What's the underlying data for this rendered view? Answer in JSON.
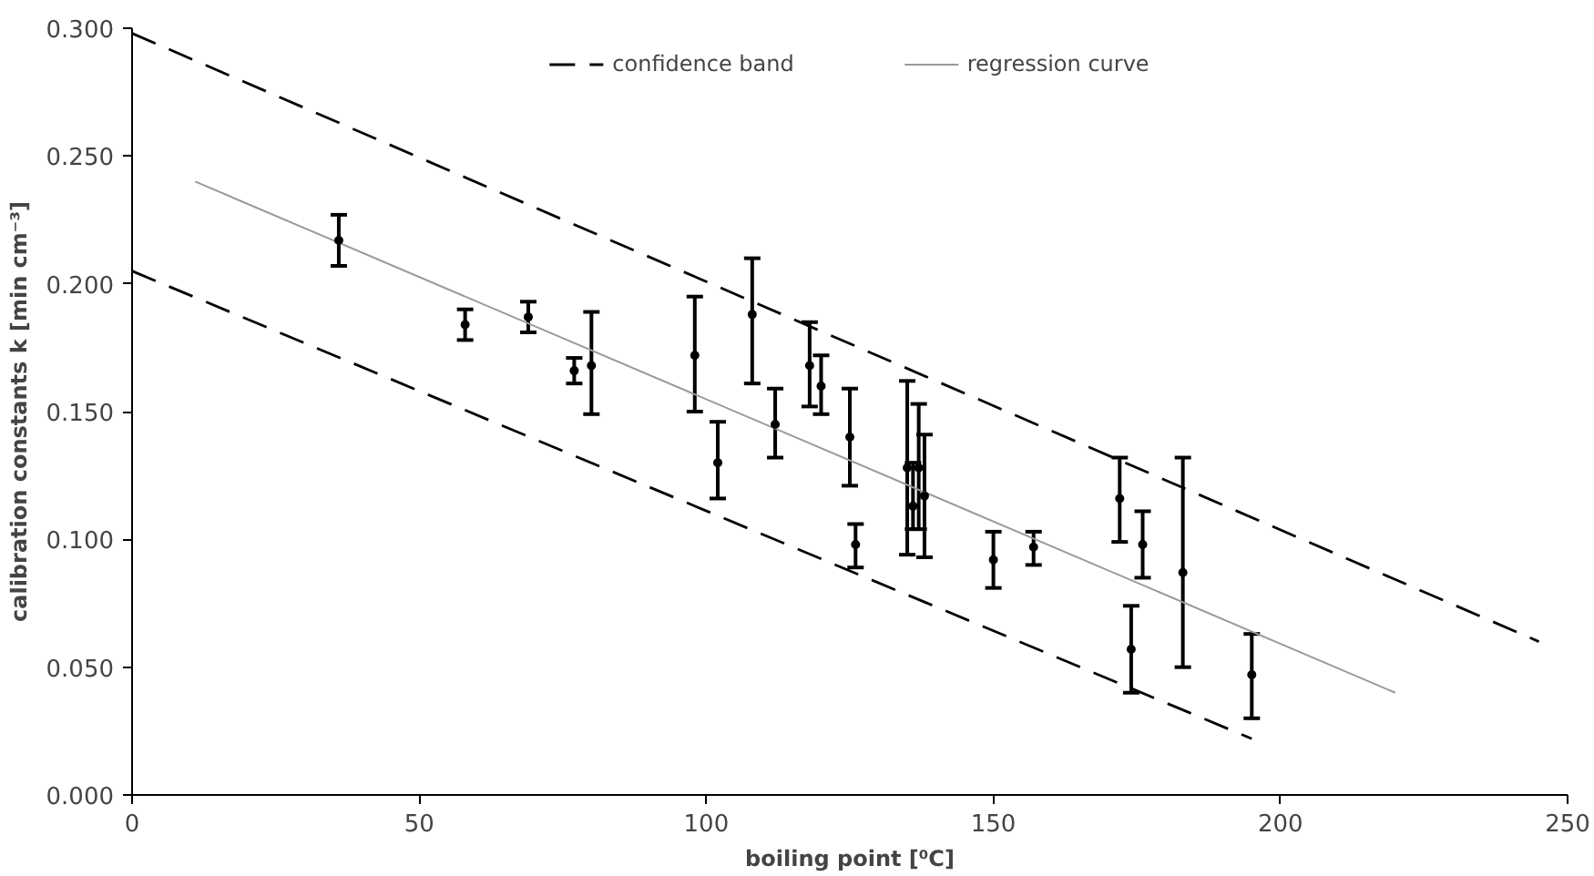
{
  "chart_data": {
    "type": "scatter",
    "xlabel": "boiling point [⁰C]",
    "ylabel": "calibration constants k [min cm⁻³]",
    "xlim": [
      0,
      250
    ],
    "ylim": [
      0,
      0.3
    ],
    "xticks": [
      0,
      50,
      100,
      150,
      200,
      250
    ],
    "yticks": [
      {
        "value": 0,
        "label": "0.000"
      },
      {
        "value": 0.05,
        "label": "0.050"
      },
      {
        "value": 0.1,
        "label": "0.100"
      },
      {
        "value": 0.15,
        "label": "0.150"
      },
      {
        "value": 0.2,
        "label": "0.200"
      },
      {
        "value": 0.25,
        "label": "0.250"
      },
      {
        "value": 0.3,
        "label": "0.300"
      }
    ],
    "grid": false,
    "legend": "top",
    "marker": "none",
    "series": [
      {
        "type": "line",
        "name": "confidence band",
        "color": "#000000",
        "line_style": "dashed",
        "x": [
          0,
          245
        ],
        "values": [
          0.298,
          0.06
        ]
      },
      {
        "type": "line",
        "color": "#000000",
        "line_style": "dashed",
        "x": [
          0,
          195
        ],
        "values": [
          0.205,
          0.022
        ]
      },
      {
        "type": "line",
        "name": "regression curve",
        "color": "#999999",
        "line_style": "solid",
        "x": [
          11,
          220
        ],
        "values": [
          0.24,
          0.04
        ]
      },
      {
        "color": "#000000",
        "marker": "circle",
        "x": [
          36,
          58,
          69,
          77,
          80,
          98,
          102,
          108,
          112,
          118,
          120,
          125,
          126,
          135,
          136,
          137,
          138,
          150,
          157,
          172,
          174,
          176,
          183,
          195
        ],
        "values": [
          0.217,
          0.184,
          0.187,
          0.166,
          0.168,
          0.172,
          0.13,
          0.188,
          0.145,
          0.168,
          0.16,
          0.14,
          0.098,
          0.128,
          0.113,
          0.128,
          0.117,
          0.092,
          0.097,
          0.116,
          0.057,
          0.098,
          0.087,
          0.047
        ],
        "errors": [
          [
            0.207,
            0.227
          ],
          [
            0.178,
            0.19
          ],
          [
            0.181,
            0.193
          ],
          [
            0.161,
            0.171
          ],
          [
            0.149,
            0.189
          ],
          [
            0.15,
            0.195
          ],
          [
            0.116,
            0.146
          ],
          [
            0.161,
            0.21
          ],
          [
            0.132,
            0.159
          ],
          [
            0.152,
            0.185
          ],
          [
            0.149,
            0.172
          ],
          [
            0.121,
            0.159
          ],
          [
            0.089,
            0.106
          ],
          [
            0.094,
            0.162
          ],
          [
            0.104,
            0.13
          ],
          [
            0.104,
            0.153
          ],
          [
            0.093,
            0.141
          ],
          [
            0.081,
            0.103
          ],
          [
            0.09,
            0.103
          ],
          [
            0.099,
            0.132
          ],
          [
            0.04,
            0.074
          ],
          [
            0.085,
            0.111
          ],
          [
            0.05,
            0.132
          ],
          [
            0.03,
            0.063
          ]
        ]
      }
    ]
  }
}
